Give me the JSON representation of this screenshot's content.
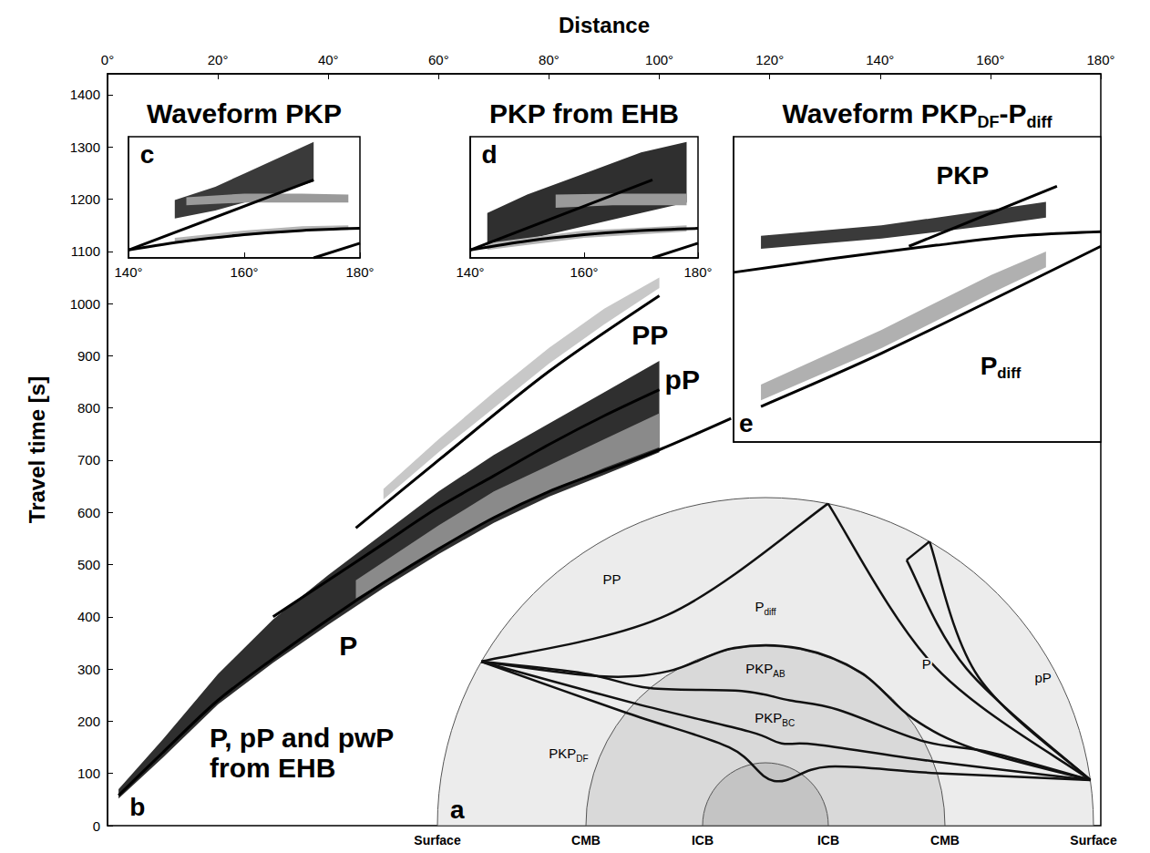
{
  "chart_data": [
    {
      "type": "line",
      "x_label": "Distance",
      "y_label": "Travel time [s]",
      "xlim": [
        0,
        180
      ],
      "xticks": [
        {
          "value": 0,
          "label": "0°"
        },
        {
          "value": 20,
          "label": "20°"
        },
        {
          "value": 40,
          "label": "40°"
        },
        {
          "value": 60,
          "label": "60°"
        },
        {
          "value": 80,
          "label": "80°"
        },
        {
          "value": 100,
          "label": "100°"
        },
        {
          "value": 120,
          "label": "120°"
        },
        {
          "value": 140,
          "label": "140°"
        },
        {
          "value": 160,
          "label": "160°"
        },
        {
          "value": 180,
          "label": "180°"
        }
      ],
      "ylim": [
        0,
        1440
      ],
      "yticks": [
        0,
        100,
        200,
        300,
        400,
        500,
        600,
        700,
        800,
        900,
        1000,
        1100,
        1200,
        1300,
        1400
      ],
      "grid": false,
      "series": [
        {
          "type": "band",
          "color": "#c8c8c8",
          "x": [
            50,
            60,
            70,
            80,
            90,
            100
          ],
          "low": [
            625,
            715,
            800,
            885,
            960,
            1030
          ],
          "high": [
            645,
            740,
            830,
            915,
            990,
            1050
          ]
        },
        {
          "type": "band",
          "color": "#2f2f2f",
          "x": [
            2,
            10,
            20,
            30,
            40,
            50,
            60,
            70,
            80,
            90,
            100
          ],
          "low": [
            52,
            130,
            232,
            312,
            385,
            455,
            520,
            580,
            630,
            672,
            715
          ],
          "high": [
            70,
            165,
            290,
            395,
            480,
            560,
            640,
            710,
            770,
            830,
            890
          ]
        },
        {
          "type": "band",
          "color": "#8a8a8a",
          "x": [
            45,
            60,
            70,
            80,
            90,
            100
          ],
          "low": [
            435,
            530,
            590,
            640,
            685,
            725
          ],
          "high": [
            470,
            575,
            640,
            690,
            740,
            790
          ]
        },
        {
          "type": "line",
          "color": "#000000",
          "x": [
            2,
            10,
            20,
            30,
            40,
            50,
            60,
            70,
            80,
            90,
            100,
            113
          ],
          "values": [
            58,
            140,
            240,
            320,
            395,
            465,
            530,
            590,
            640,
            680,
            720,
            780
          ]
        },
        {
          "type": "line",
          "color": "#000000",
          "x": [
            45,
            60,
            80,
            100
          ],
          "values": [
            570,
            700,
            870,
            1015
          ]
        },
        {
          "type": "line",
          "color": "#000000",
          "x": [
            30,
            40,
            50,
            60,
            70,
            80,
            90,
            100
          ],
          "values": [
            400,
            470,
            540,
            610,
            670,
            730,
            785,
            835
          ]
        }
      ],
      "annotations": [
        {
          "text": "P",
          "x": 42,
          "y": 345
        },
        {
          "text": "PP",
          "x": 95,
          "y": 940
        },
        {
          "text": "pP",
          "x": 101,
          "y": 855
        },
        {
          "text": "P, pP and pwP from EHB",
          "x": 18.5,
          "y": 140
        },
        {
          "text": "b",
          "x": 4,
          "y": 35
        }
      ]
    },
    {
      "type": "line",
      "title": "Waveform PKP",
      "xlim": [
        140,
        180
      ],
      "xticks": [
        {
          "value": 140,
          "label": "140°"
        },
        {
          "value": 160,
          "label": "160°"
        },
        {
          "value": 180,
          "label": "180°"
        }
      ],
      "ylim": [
        1090,
        1320
      ],
      "tick_labels": "x",
      "series": [
        {
          "type": "band",
          "color": "#3a3a3a",
          "x": [
            148,
            155,
            160,
            165,
            172
          ],
          "low": [
            1165,
            1180,
            1195,
            1210,
            1235
          ],
          "high": [
            1200,
            1225,
            1250,
            1275,
            1310
          ]
        },
        {
          "type": "band",
          "color": "#9a9a9a",
          "x": [
            150,
            160,
            170,
            178
          ],
          "low": [
            1190,
            1195,
            1195,
            1195
          ],
          "high": [
            1205,
            1212,
            1212,
            1210
          ]
        },
        {
          "type": "band",
          "color": "#b5b5b5",
          "x": [
            148,
            160,
            170,
            178
          ],
          "low": [
            1118,
            1132,
            1140,
            1143
          ],
          "high": [
            1128,
            1142,
            1150,
            1152
          ]
        },
        {
          "type": "line",
          "color": "#000000",
          "x": [
            140,
            150,
            160,
            170,
            180
          ],
          "values": [
            1105,
            1122,
            1134,
            1142,
            1146
          ]
        },
        {
          "type": "line",
          "color": "#000000",
          "x": [
            140,
            172
          ],
          "values": [
            1105,
            1238
          ]
        },
        {
          "type": "line",
          "color": "#000000",
          "x": [
            172,
            180
          ],
          "values": [
            1090,
            1118
          ]
        }
      ],
      "annotations": [
        {
          "text": "c",
          "x": 142,
          "y": 1285
        }
      ]
    },
    {
      "type": "line",
      "title": "PKP from EHB",
      "xlim": [
        140,
        180
      ],
      "xticks": [
        {
          "value": 140,
          "label": "140°"
        },
        {
          "value": 160,
          "label": "160°"
        },
        {
          "value": 180,
          "label": "180°"
        }
      ],
      "ylim": [
        1090,
        1320
      ],
      "tick_labels": "x",
      "series": [
        {
          "type": "band",
          "color": "#2f2f2f",
          "x": [
            143,
            150,
            160,
            170,
            178
          ],
          "low": [
            1110,
            1125,
            1150,
            1175,
            1195
          ],
          "high": [
            1175,
            1210,
            1250,
            1290,
            1310
          ]
        },
        {
          "type": "band",
          "color": "#9a9a9a",
          "x": [
            155,
            165,
            178
          ],
          "low": [
            1185,
            1190,
            1190
          ],
          "high": [
            1210,
            1212,
            1212
          ]
        },
        {
          "type": "band",
          "color": "#b5b5b5",
          "x": [
            143,
            160,
            178
          ],
          "low": [
            1105,
            1128,
            1140
          ],
          "high": [
            1118,
            1142,
            1152
          ]
        },
        {
          "type": "line",
          "color": "#000000",
          "x": [
            140,
            150,
            160,
            170,
            180
          ],
          "values": [
            1105,
            1122,
            1134,
            1142,
            1146
          ]
        },
        {
          "type": "line",
          "color": "#000000",
          "x": [
            140,
            172
          ],
          "values": [
            1105,
            1238
          ]
        },
        {
          "type": "line",
          "color": "#000000",
          "x": [
            172,
            180
          ],
          "values": [
            1090,
            1118
          ]
        }
      ],
      "annotations": [
        {
          "text": "d",
          "x": 142,
          "y": 1285
        }
      ]
    },
    {
      "type": "line",
      "title": {
        "text": "Waveform PKPDF-Pdiff",
        "subscripts": [
          "DF",
          "diff"
        ]
      },
      "xlim": [
        113,
        180
      ],
      "ylim": [
        735,
        1320
      ],
      "tick_labels": false,
      "series": [
        {
          "type": "band",
          "color": "#b0b0b0",
          "x": [
            118,
            140,
            160,
            170
          ],
          "low": [
            815,
            915,
            1020,
            1070
          ],
          "high": [
            845,
            950,
            1055,
            1100
          ]
        },
        {
          "type": "band",
          "color": "#3a3a3a",
          "x": [
            118,
            140,
            160,
            170
          ],
          "low": [
            1105,
            1125,
            1150,
            1165
          ],
          "high": [
            1130,
            1150,
            1180,
            1195
          ]
        },
        {
          "type": "line",
          "color": "#000000",
          "x": [
            118,
            140,
            180
          ],
          "values": [
            803,
            905,
            1110
          ]
        },
        {
          "type": "line",
          "color": "#000000",
          "x": [
            113,
            130,
            150,
            165,
            180
          ],
          "values": [
            1060,
            1085,
            1112,
            1130,
            1138
          ]
        },
        {
          "type": "line",
          "color": "#000000",
          "x": [
            145,
            172
          ],
          "values": [
            1110,
            1225
          ]
        }
      ],
      "annotations": [
        {
          "text": "PKP",
          "x": 150,
          "y": 1245
        },
        {
          "text": "Pdiff",
          "subscripts": [
            "diff"
          ],
          "x": 158,
          "y": 880
        },
        {
          "text": "e",
          "x": 114,
          "y": 770
        }
      ]
    }
  ],
  "diagram": {
    "letter": "a",
    "boundaries": [
      "Surface",
      "CMB",
      "ICB",
      "ICB",
      "CMB",
      "Surface"
    ],
    "rays": [
      {
        "text": "PP"
      },
      {
        "text": "Pdiff",
        "subscripts": [
          "diff"
        ]
      },
      {
        "text": "PKPAB",
        "subscripts": [
          "AB"
        ]
      },
      {
        "text": "PKPBC",
        "subscripts": [
          "BC"
        ]
      },
      {
        "text": "PKPDF",
        "subscripts": [
          "DF"
        ]
      },
      {
        "text": "P"
      },
      {
        "text": "pP"
      }
    ]
  }
}
